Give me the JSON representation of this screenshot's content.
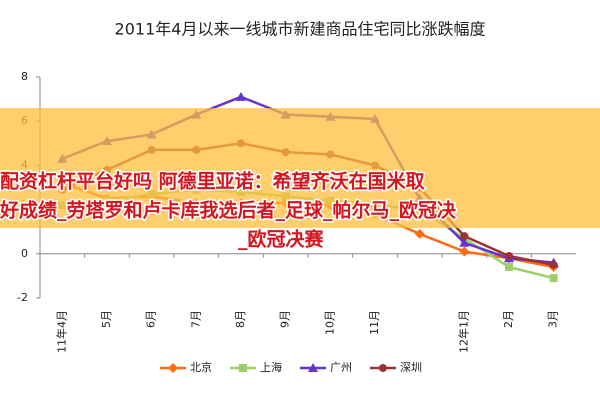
{
  "chart_data": {
    "type": "line",
    "title": "2011年4月以来一线城市新建商品住宅同比涨跌幅度",
    "categories": [
      "11年4月",
      "5月",
      "6月",
      "7月",
      "8月",
      "9月",
      "10月",
      "11月",
      null,
      "12年1月",
      "2月",
      "3月"
    ],
    "series": [
      {
        "name": "北京",
        "color": "#ff6a13",
        "marker": "diamond",
        "values": [
          3.2,
          2.5,
          2.6,
          2.3,
          2.3,
          2.3,
          2.2,
          1.8,
          0.9,
          0.1,
          -0.2,
          -0.6
        ]
      },
      {
        "name": "上海",
        "color": "#9bd06a",
        "marker": "square",
        "values": [
          2.2,
          2.4,
          2.7,
          2.9,
          2.8,
          2.6,
          2.4,
          2.2,
          2.0,
          0.7,
          -0.6,
          -1.1
        ]
      },
      {
        "name": "广州",
        "color": "#6633cc",
        "marker": "triangle",
        "values": [
          4.3,
          5.1,
          5.4,
          6.3,
          7.1,
          6.3,
          6.2,
          6.1,
          2.5,
          0.5,
          -0.2,
          -0.4
        ]
      },
      {
        "name": "深圳",
        "color": "#993333",
        "marker": "circle",
        "values": [
          2.9,
          3.8,
          4.7,
          4.7,
          5.0,
          4.6,
          4.5,
          4.0,
          3.0,
          0.8,
          -0.1,
          -0.5
        ]
      }
    ],
    "ylim": [
      -2,
      8
    ],
    "yticks": [
      -2,
      0,
      2,
      4,
      6,
      8
    ],
    "grid": false,
    "overlay": [
      "配资杠杆平台好吗 阿德里亚诺：希望齐沃在国米取",
      "好成绩_劳塔罗和卢卡库我选后者_足球_帕尔马_欧冠决",
      "_欧冠决赛"
    ]
  }
}
